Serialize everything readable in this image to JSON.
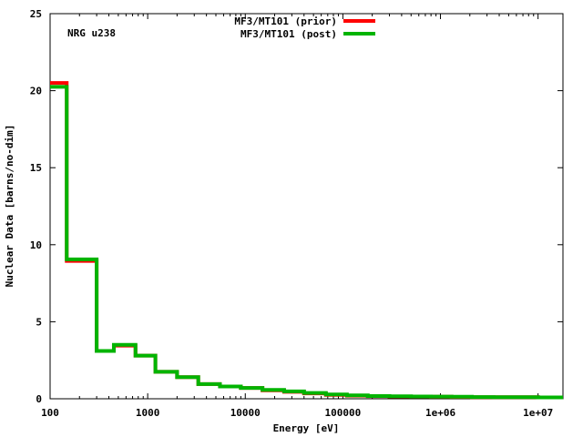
{
  "chart_data": {
    "type": "line",
    "step": true,
    "xscale": "log",
    "xlim": [
      100,
      18000000
    ],
    "ylim": [
      0,
      25
    ],
    "xlabel": "Energy [eV]",
    "ylabel": "Nuclear Data [barns/no-dim]",
    "annotation": "NRG u238",
    "legend_position": "top-center",
    "x_ticks": [
      100,
      1000,
      10000,
      100000,
      1000000,
      10000000
    ],
    "x_tick_labels": [
      "100",
      "1000",
      "10000",
      "100000",
      "1e+06",
      "1e+07"
    ],
    "y_ticks": [
      0,
      5,
      10,
      15,
      20,
      25
    ],
    "y_tick_labels": [
      "0",
      "5",
      "10",
      "15",
      "20",
      "25"
    ],
    "bin_edges": [
      100,
      148,
      300,
      450,
      750,
      1200,
      2000,
      3300,
      5500,
      9000,
      15000,
      25000,
      40000,
      67000,
      110000,
      180000,
      300000,
      500000,
      800000,
      1300000,
      2100000,
      3500000,
      6000000,
      10000000,
      18000000
    ],
    "series": [
      {
        "name": "MF3/MT101 (prior)",
        "color": "#ff0000",
        "values": [
          20.5,
          8.95,
          3.1,
          3.45,
          2.8,
          1.75,
          1.4,
          0.95,
          0.8,
          0.7,
          0.55,
          0.45,
          0.35,
          0.25,
          0.2,
          0.17,
          0.15,
          0.14,
          0.13,
          0.12,
          0.1,
          0.1,
          0.1,
          0.09
        ]
      },
      {
        "name": "MF3/MT101 (post)",
        "color": "#00b400",
        "values": [
          20.25,
          9.05,
          3.1,
          3.5,
          2.8,
          1.75,
          1.4,
          0.95,
          0.8,
          0.7,
          0.58,
          0.48,
          0.38,
          0.28,
          0.22,
          0.18,
          0.16,
          0.15,
          0.14,
          0.13,
          0.11,
          0.1,
          0.1,
          0.09
        ]
      }
    ]
  }
}
